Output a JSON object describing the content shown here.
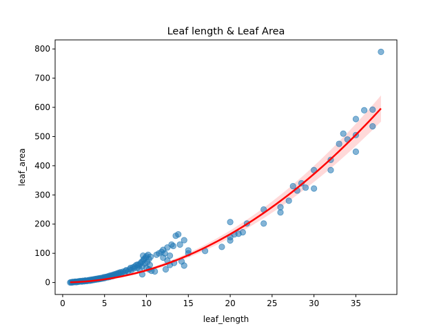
{
  "chart_data": {
    "type": "scatter",
    "title": "Leaf length & Leaf Area",
    "xlabel": "leaf_length",
    "ylabel": "leaf_area",
    "xlim": [
      -0.9,
      39.9
    ],
    "ylim": [
      -41,
      831
    ],
    "xticks": [
      0,
      5,
      10,
      15,
      20,
      25,
      30,
      35
    ],
    "yticks": [
      0,
      100,
      200,
      300,
      400,
      500,
      600,
      700,
      800
    ],
    "grid": false,
    "legend": "none",
    "colors": {
      "points": "#1f77b4",
      "fit": "#ff0000",
      "band": "#ff0000"
    },
    "points": [
      [
        0.9,
        0
      ],
      [
        1.0,
        1
      ],
      [
        1.1,
        0
      ],
      [
        1.2,
        2
      ],
      [
        1.3,
        1
      ],
      [
        1.4,
        2
      ],
      [
        1.5,
        3
      ],
      [
        1.6,
        1
      ],
      [
        1.7,
        3
      ],
      [
        1.8,
        2
      ],
      [
        1.9,
        4
      ],
      [
        2.0,
        3
      ],
      [
        2.1,
        5
      ],
      [
        2.2,
        4
      ],
      [
        2.3,
        3
      ],
      [
        2.4,
        6
      ],
      [
        2.5,
        5
      ],
      [
        2.6,
        4
      ],
      [
        2.7,
        7
      ],
      [
        2.8,
        6
      ],
      [
        2.9,
        5
      ],
      [
        3.0,
        7
      ],
      [
        3.1,
        8
      ],
      [
        3.2,
        6
      ],
      [
        3.3,
        9
      ],
      [
        3.4,
        7
      ],
      [
        3.5,
        10
      ],
      [
        3.6,
        8
      ],
      [
        3.7,
        11
      ],
      [
        3.8,
        9
      ],
      [
        3.9,
        12
      ],
      [
        4.0,
        10
      ],
      [
        4.1,
        13
      ],
      [
        4.2,
        11
      ],
      [
        4.3,
        14
      ],
      [
        4.4,
        12
      ],
      [
        4.5,
        15
      ],
      [
        4.6,
        13
      ],
      [
        4.7,
        16
      ],
      [
        4.8,
        14
      ],
      [
        4.9,
        18
      ],
      [
        5.0,
        15
      ],
      [
        5.1,
        19
      ],
      [
        5.2,
        17
      ],
      [
        5.3,
        20
      ],
      [
        5.4,
        18
      ],
      [
        5.5,
        22
      ],
      [
        5.6,
        19
      ],
      [
        5.7,
        24
      ],
      [
        5.8,
        21
      ],
      [
        5.9,
        25
      ],
      [
        6.0,
        22
      ],
      [
        6.1,
        27
      ],
      [
        6.2,
        24
      ],
      [
        6.3,
        29
      ],
      [
        6.4,
        26
      ],
      [
        6.5,
        31
      ],
      [
        6.6,
        28
      ],
      [
        6.7,
        33
      ],
      [
        6.8,
        30
      ],
      [
        6.9,
        35
      ],
      [
        7.0,
        32
      ],
      [
        7.2,
        37
      ],
      [
        7.4,
        34
      ],
      [
        7.5,
        40
      ],
      [
        7.6,
        42
      ],
      [
        7.8,
        38
      ],
      [
        8.0,
        45
      ],
      [
        8.1,
        50
      ],
      [
        8.2,
        43
      ],
      [
        8.4,
        52
      ],
      [
        8.5,
        48
      ],
      [
        8.6,
        55
      ],
      [
        8.8,
        60
      ],
      [
        8.9,
        50
      ],
      [
        9.0,
        62
      ],
      [
        9.1,
        58
      ],
      [
        9.2,
        45
      ],
      [
        9.3,
        65
      ],
      [
        9.4,
        70
      ],
      [
        9.5,
        55
      ],
      [
        9.6,
        75
      ],
      [
        9.7,
        80
      ],
      [
        9.8,
        65
      ],
      [
        9.9,
        85
      ],
      [
        10.0,
        90
      ],
      [
        10.1,
        70
      ],
      [
        10.2,
        95
      ],
      [
        10.3,
        80
      ],
      [
        10.4,
        60
      ],
      [
        9.6,
        92
      ],
      [
        10.5,
        88
      ],
      [
        9.5,
        28
      ],
      [
        10.0,
        50
      ],
      [
        10.3,
        45
      ],
      [
        10.6,
        40
      ],
      [
        11.0,
        38
      ],
      [
        11.2,
        95
      ],
      [
        11.5,
        100
      ],
      [
        11.8,
        105
      ],
      [
        12.0,
        112
      ],
      [
        12.2,
        100
      ],
      [
        12.5,
        120
      ],
      [
        12.0,
        85
      ],
      [
        12.5,
        75
      ],
      [
        12.8,
        92
      ],
      [
        13.0,
        130
      ],
      [
        13.2,
        125
      ],
      [
        13.5,
        160
      ],
      [
        13.8,
        165
      ],
      [
        14.0,
        130
      ],
      [
        14.2,
        72
      ],
      [
        14.5,
        145
      ],
      [
        12.3,
        45
      ],
      [
        12.8,
        60
      ],
      [
        13.3,
        67
      ],
      [
        14.5,
        58
      ],
      [
        15.0,
        100
      ],
      [
        15.0,
        110
      ],
      [
        17.0,
        108
      ],
      [
        19.0,
        122
      ],
      [
        20.0,
        144
      ],
      [
        20.0,
        155
      ],
      [
        20.0,
        207
      ],
      [
        20.5,
        165
      ],
      [
        21.0,
        167
      ],
      [
        21.5,
        172
      ],
      [
        22.0,
        202
      ],
      [
        24.0,
        202
      ],
      [
        24.0,
        250
      ],
      [
        26.0,
        240
      ],
      [
        26.0,
        258
      ],
      [
        27.0,
        280
      ],
      [
        27.5,
        330
      ],
      [
        28.0,
        315
      ],
      [
        28.5,
        340
      ],
      [
        29.0,
        325
      ],
      [
        30.0,
        322
      ],
      [
        30.0,
        385
      ],
      [
        32.0,
        385
      ],
      [
        32.0,
        420
      ],
      [
        33.0,
        475
      ],
      [
        33.5,
        510
      ],
      [
        34.0,
        490
      ],
      [
        35.0,
        448
      ],
      [
        35.0,
        505
      ],
      [
        35.0,
        560
      ],
      [
        36.0,
        590
      ],
      [
        37.0,
        535
      ],
      [
        37.0,
        592
      ],
      [
        38.0,
        790
      ]
    ],
    "fit": {
      "model": "quadratic",
      "coefficients": [
        0.4,
        0.02,
        0.412
      ],
      "x_range": [
        0.9,
        38.0
      ],
      "band_width_at_max": 45
    }
  }
}
